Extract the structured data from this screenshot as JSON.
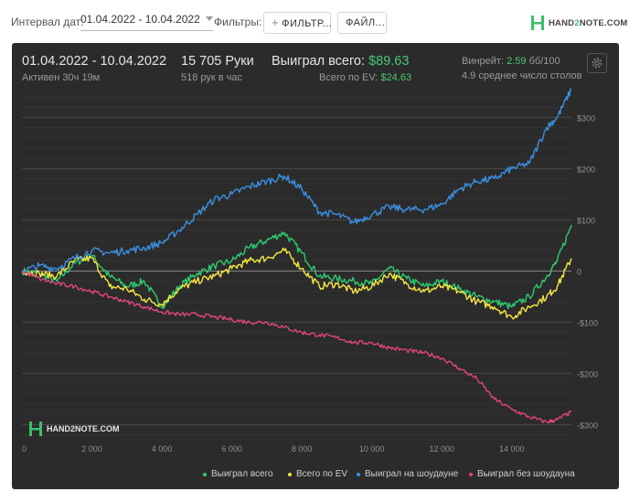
{
  "filters": {
    "interval_label": "Интервал дат:",
    "date_range": "01.04.2022 - 10.04.2022",
    "filters_label": "Фильтры:",
    "filter_button": "ФИЛЬТР...",
    "file_button": "ФАЙЛ..."
  },
  "logo": {
    "text_a": "HAND",
    "text_b": "2",
    "text_c": "NOTE.COM"
  },
  "summary": {
    "date_range": "01.04.2022 - 10.04.2022",
    "active": "Активен 30ч 19м",
    "hands": "15 705 Руки",
    "hands_per_hour": "518 рук в час",
    "won_label": "Выиграл всего:",
    "won_value": "$89.63",
    "ev_label": "Всего по EV:",
    "ev_value": "$24.63",
    "winrate_label": "Винрейт:",
    "winrate_value": "2.59",
    "winrate_unit": "бб/100",
    "tables": "4.9 среднее число столов"
  },
  "watermark": "HAND2NOTE.COM",
  "colors": {
    "won_total": "#2ecc71",
    "ev_total": "#f5e642",
    "showdown": "#3b8fe0",
    "non_showdown": "#e0457b",
    "panel_bg": "#2b2b2b"
  },
  "chart_data": {
    "type": "line",
    "xlabel": "",
    "ylabel": "",
    "xlim": [
      0,
      15705
    ],
    "ylim": [
      -300,
      350
    ],
    "x_ticks": [
      "0",
      "2 000",
      "4 000",
      "6 000",
      "8 000",
      "10 000",
      "12 000",
      "14 000"
    ],
    "y_ticks": [
      "$300",
      "$200",
      "$100",
      "0",
      "-$100",
      "-$200",
      "-$300"
    ],
    "grid": true,
    "legend": "bottom-right",
    "series": [
      {
        "name": "Выиграл всего",
        "color": "#2ecc71",
        "points": [
          [
            0,
            0
          ],
          [
            500,
            -5
          ],
          [
            1000,
            -20
          ],
          [
            1500,
            15
          ],
          [
            2000,
            30
          ],
          [
            2500,
            -10
          ],
          [
            3000,
            -30
          ],
          [
            3500,
            -20
          ],
          [
            4000,
            -70
          ],
          [
            4500,
            -30
          ],
          [
            5000,
            -5
          ],
          [
            5500,
            10
          ],
          [
            6000,
            20
          ],
          [
            6500,
            45
          ],
          [
            7000,
            60
          ],
          [
            7500,
            75
          ],
          [
            8000,
            35
          ],
          [
            8500,
            -10
          ],
          [
            9000,
            -15
          ],
          [
            9500,
            -20
          ],
          [
            10000,
            -25
          ],
          [
            10500,
            5
          ],
          [
            11000,
            -15
          ],
          [
            11500,
            -30
          ],
          [
            12000,
            -20
          ],
          [
            12500,
            -35
          ],
          [
            13000,
            -50
          ],
          [
            13500,
            -60
          ],
          [
            14000,
            -70
          ],
          [
            14500,
            -50
          ],
          [
            15000,
            -10
          ],
          [
            15300,
            20
          ],
          [
            15705,
            89.63
          ]
        ]
      },
      {
        "name": "Всего по EV",
        "color": "#f5e642",
        "points": [
          [
            0,
            0
          ],
          [
            500,
            -5
          ],
          [
            1000,
            -10
          ],
          [
            1500,
            20
          ],
          [
            2000,
            25
          ],
          [
            2500,
            -30
          ],
          [
            3000,
            -35
          ],
          [
            3500,
            -55
          ],
          [
            4000,
            -65
          ],
          [
            4500,
            -35
          ],
          [
            5000,
            -20
          ],
          [
            5500,
            -10
          ],
          [
            6000,
            5
          ],
          [
            6500,
            20
          ],
          [
            7000,
            25
          ],
          [
            7500,
            40
          ],
          [
            8000,
            5
          ],
          [
            8500,
            -30
          ],
          [
            9000,
            -25
          ],
          [
            9500,
            -40
          ],
          [
            10000,
            -30
          ],
          [
            10500,
            -5
          ],
          [
            11000,
            -25
          ],
          [
            11500,
            -40
          ],
          [
            12000,
            -30
          ],
          [
            12500,
            -40
          ],
          [
            13000,
            -60
          ],
          [
            13500,
            -70
          ],
          [
            14000,
            -90
          ],
          [
            14500,
            -70
          ],
          [
            15000,
            -50
          ],
          [
            15300,
            -30
          ],
          [
            15705,
            24.63
          ]
        ]
      },
      {
        "name": "Выиграл на шоудауне",
        "color": "#3b8fe0",
        "points": [
          [
            0,
            0
          ],
          [
            500,
            10
          ],
          [
            1000,
            5
          ],
          [
            1500,
            25
          ],
          [
            2000,
            40
          ],
          [
            2500,
            35
          ],
          [
            3000,
            40
          ],
          [
            3500,
            45
          ],
          [
            4000,
            55
          ],
          [
            4500,
            80
          ],
          [
            5000,
            110
          ],
          [
            5500,
            140
          ],
          [
            6000,
            150
          ],
          [
            6500,
            165
          ],
          [
            7000,
            175
          ],
          [
            7500,
            185
          ],
          [
            8000,
            160
          ],
          [
            8500,
            115
          ],
          [
            9000,
            110
          ],
          [
            9500,
            95
          ],
          [
            10000,
            110
          ],
          [
            10500,
            125
          ],
          [
            11000,
            120
          ],
          [
            11500,
            120
          ],
          [
            12000,
            130
          ],
          [
            12500,
            160
          ],
          [
            13000,
            175
          ],
          [
            13500,
            180
          ],
          [
            14000,
            200
          ],
          [
            14500,
            210
          ],
          [
            15000,
            280
          ],
          [
            15300,
            300
          ],
          [
            15705,
            355
          ]
        ]
      },
      {
        "name": "Выиграл без шоудауна",
        "color": "#e0457b",
        "points": [
          [
            0,
            0
          ],
          [
            500,
            -15
          ],
          [
            1000,
            -25
          ],
          [
            1500,
            -30
          ],
          [
            2000,
            -40
          ],
          [
            2500,
            -50
          ],
          [
            3000,
            -60
          ],
          [
            3500,
            -70
          ],
          [
            4000,
            -80
          ],
          [
            4500,
            -85
          ],
          [
            5000,
            -85
          ],
          [
            5500,
            -90
          ],
          [
            6000,
            -95
          ],
          [
            6500,
            -100
          ],
          [
            7000,
            -100
          ],
          [
            7500,
            -110
          ],
          [
            8000,
            -120
          ],
          [
            8500,
            -125
          ],
          [
            9000,
            -130
          ],
          [
            9500,
            -140
          ],
          [
            10000,
            -140
          ],
          [
            10500,
            -150
          ],
          [
            11000,
            -155
          ],
          [
            11500,
            -160
          ],
          [
            12000,
            -170
          ],
          [
            12500,
            -190
          ],
          [
            13000,
            -210
          ],
          [
            13500,
            -250
          ],
          [
            14000,
            -270
          ],
          [
            14500,
            -285
          ],
          [
            15000,
            -295
          ],
          [
            15300,
            -290
          ],
          [
            15705,
            -275
          ]
        ]
      }
    ]
  },
  "legend": [
    {
      "label": "Выиграл всего",
      "color": "#2ecc71"
    },
    {
      "label": "Всего по EV",
      "color": "#f5e642"
    },
    {
      "label": "Выиграл на шоудауне",
      "color": "#3b8fe0"
    },
    {
      "label": "Выиграл без шоудауна",
      "color": "#e0457b"
    }
  ]
}
